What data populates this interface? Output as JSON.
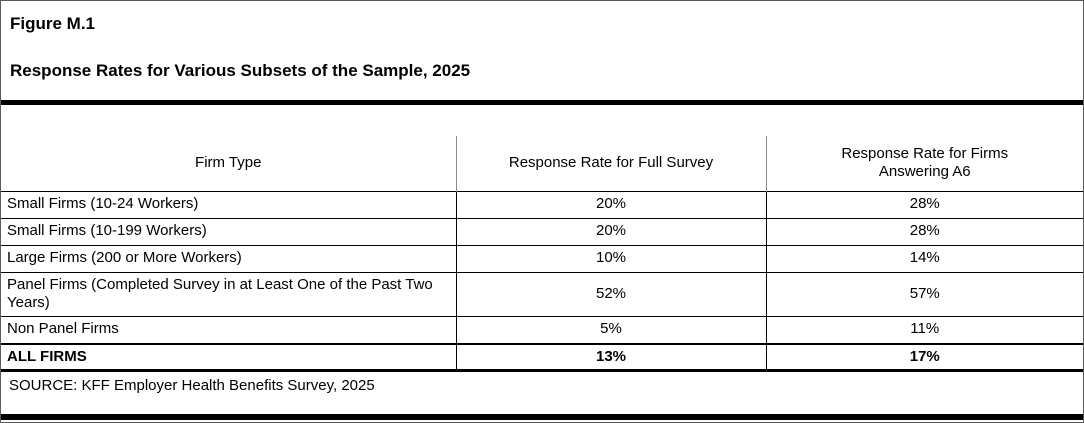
{
  "figure": {
    "number": "Figure M.1",
    "title": "Response Rates for Various Subsets of the Sample, 2025",
    "source": "SOURCE: KFF Employer Health Benefits Survey, 2025"
  },
  "table": {
    "headers": {
      "firm_type": "Firm Type",
      "full_survey": "Response Rate for Full Survey",
      "a6": "Response Rate for Firms Answering A6"
    },
    "rows": [
      {
        "firm_type": "Small Firms (10-24 Workers)",
        "full_survey": "20%",
        "a6": "28%"
      },
      {
        "firm_type": "Small Firms (10-199 Workers)",
        "full_survey": "20%",
        "a6": "28%"
      },
      {
        "firm_type": "Large Firms (200 or More Workers)",
        "full_survey": "10%",
        "a6": "14%"
      },
      {
        "firm_type": "Panel Firms (Completed Survey in at Least One of the Past Two Years)",
        "full_survey": "52%",
        "a6": "57%"
      },
      {
        "firm_type": "Non Panel Firms",
        "full_survey": "5%",
        "a6": "11%"
      },
      {
        "firm_type": "ALL FIRMS",
        "full_survey": "13%",
        "a6": "17%"
      }
    ]
  },
  "chart_data": {
    "type": "table",
    "title": "Response Rates for Various Subsets of the Sample, 2025",
    "columns": [
      "Firm Type",
      "Response Rate for Full Survey",
      "Response Rate for Firms Answering A6"
    ],
    "rows": [
      [
        "Small Firms (10-24 Workers)",
        "20%",
        "28%"
      ],
      [
        "Small Firms (10-199 Workers)",
        "20%",
        "28%"
      ],
      [
        "Large Firms (200 or More Workers)",
        "10%",
        "14%"
      ],
      [
        "Panel Firms (Completed Survey in at Least One of the Past Two Years)",
        "52%",
        "57%"
      ],
      [
        "Non Panel Firms",
        "5%",
        "11%"
      ],
      [
        "ALL FIRMS",
        "13%",
        "17%"
      ]
    ],
    "source": "SOURCE: KFF Employer Health Benefits Survey, 2025"
  }
}
